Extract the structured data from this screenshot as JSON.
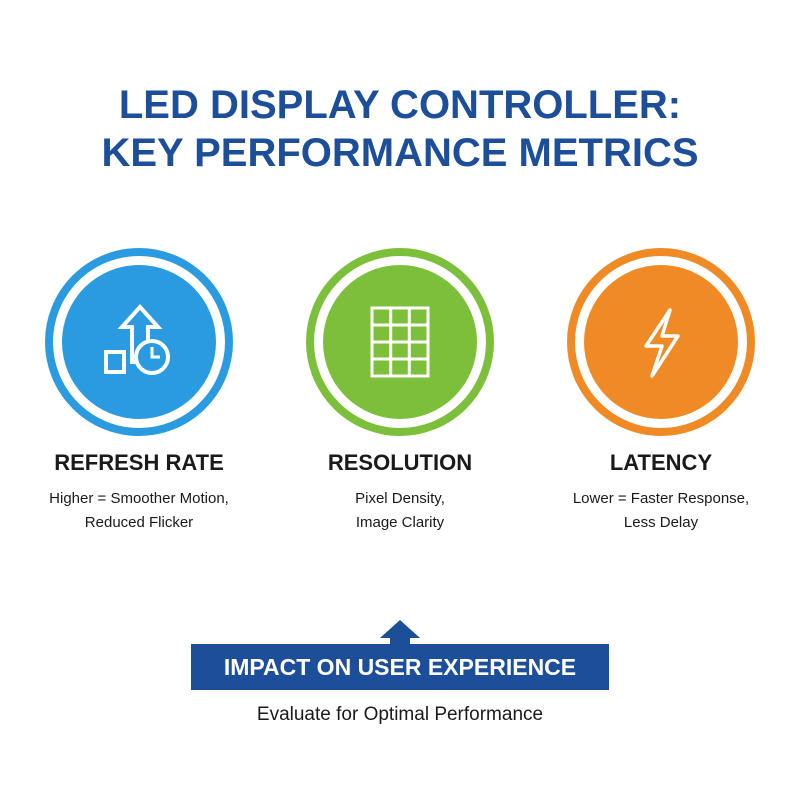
{
  "header": {
    "title_line1": "LED DISPLAY CONTROLLER:",
    "title_line2": "KEY PERFORMANCE METRICS"
  },
  "metrics": [
    {
      "title": "REFRESH RATE",
      "desc_line1": "Higher = Smoother Motion,",
      "desc_line2": "Reduced Flicker"
    },
    {
      "title": "RESOLUTION",
      "desc_line1": "Pixel Density,",
      "desc_line2": "Image Clarity"
    },
    {
      "title": "LATENCY",
      "desc_line1": "Lower = Faster Response,",
      "desc_line2": "Less Delay"
    }
  ],
  "footer": {
    "banner": "IMPACT ON USER EXPERIENCE",
    "caption": "Evaluate for Optimal Performance"
  }
}
